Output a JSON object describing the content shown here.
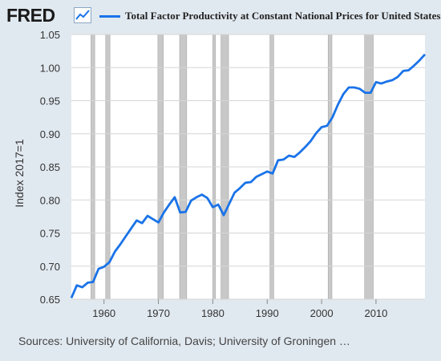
{
  "header": {
    "logo_text": "FRED",
    "logo_icon": "line-chart-icon"
  },
  "colors": {
    "series": "#1a73e8",
    "recession": "#c8c8c8",
    "plot_background": "#ffffff",
    "page_background": "#e1e9f0",
    "grid": "#d5d5d5"
  },
  "footer": {
    "source": "Sources: University of California, Davis; University of Groningen …"
  },
  "chart_data": {
    "type": "line",
    "title": "",
    "xlabel": "",
    "ylabel": "Index 2017=1",
    "xlim": [
      1954,
      2019
    ],
    "ylim": [
      0.65,
      1.05
    ],
    "y_ticks": [
      0.65,
      0.7,
      0.75,
      0.8,
      0.85,
      0.9,
      0.95,
      1.0,
      1.05
    ],
    "y_tick_labels": [
      "0.65",
      "0.70",
      "0.75",
      "0.80",
      "0.85",
      "0.90",
      "0.95",
      "1.00",
      "1.05"
    ],
    "x_ticks": [
      1960,
      1970,
      1980,
      1990,
      2000,
      2010
    ],
    "x_tick_labels": [
      "1960",
      "1970",
      "1980",
      "1990",
      "2000",
      "2010"
    ],
    "grid": "horizontal",
    "legend_position": "top",
    "recessions": [
      [
        1957.6,
        1958.3
      ],
      [
        1960.3,
        1961.1
      ],
      [
        1969.9,
        1970.9
      ],
      [
        1973.9,
        1975.2
      ],
      [
        1980.0,
        1980.5
      ],
      [
        1981.5,
        1982.9
      ],
      [
        1990.5,
        1991.2
      ],
      [
        2001.2,
        2001.9
      ],
      [
        2007.9,
        2009.5
      ]
    ],
    "series": [
      {
        "name": "Total Factor Productivity at Constant National Prices for United States",
        "x": [
          1954,
          1955,
          1956,
          1957,
          1958,
          1959,
          1960,
          1961,
          1962,
          1963,
          1964,
          1965,
          1966,
          1967,
          1968,
          1969,
          1970,
          1971,
          1972,
          1973,
          1974,
          1975,
          1976,
          1977,
          1978,
          1979,
          1980,
          1981,
          1982,
          1983,
          1984,
          1985,
          1986,
          1987,
          1988,
          1989,
          1990,
          1991,
          1992,
          1993,
          1994,
          1995,
          1996,
          1997,
          1998,
          1999,
          2000,
          2001,
          2002,
          2003,
          2004,
          2005,
          2006,
          2007,
          2008,
          2009,
          2010,
          2011,
          2012,
          2013,
          2014,
          2015,
          2016,
          2017,
          2018,
          2019
        ],
        "values": [
          0.652,
          0.671,
          0.668,
          0.675,
          0.676,
          0.696,
          0.699,
          0.706,
          0.722,
          0.733,
          0.745,
          0.757,
          0.769,
          0.765,
          0.776,
          0.771,
          0.766,
          0.781,
          0.793,
          0.804,
          0.781,
          0.782,
          0.799,
          0.804,
          0.808,
          0.803,
          0.789,
          0.793,
          0.777,
          0.794,
          0.811,
          0.818,
          0.826,
          0.827,
          0.835,
          0.839,
          0.843,
          0.84,
          0.86,
          0.861,
          0.867,
          0.865,
          0.872,
          0.88,
          0.889,
          0.901,
          0.91,
          0.912,
          0.925,
          0.944,
          0.96,
          0.97,
          0.97,
          0.968,
          0.962,
          0.962,
          0.978,
          0.976,
          0.979,
          0.981,
          0.986,
          0.995,
          0.996,
          1.003,
          1.011,
          1.02
        ]
      }
    ]
  }
}
